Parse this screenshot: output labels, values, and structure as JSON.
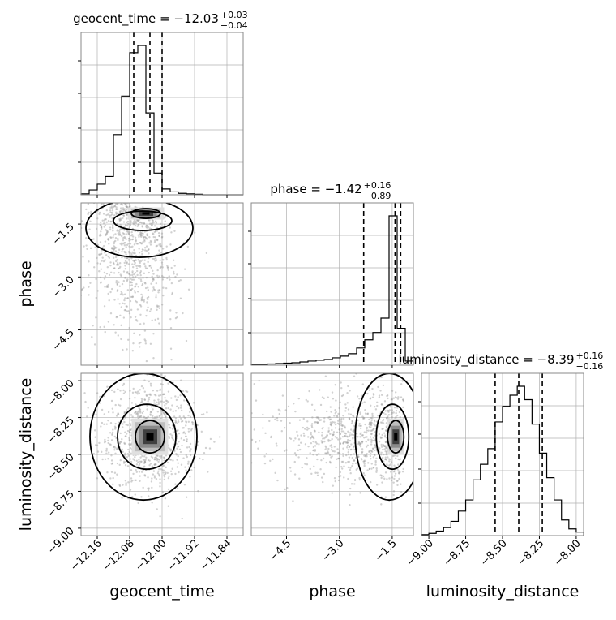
{
  "colors": {
    "hist": "#000000",
    "grid": "#b0b0b0",
    "scatter": "#9a9a9a",
    "contour": "#000000",
    "background": "#ffffff"
  },
  "chart_data": [
    {
      "type": "corner",
      "parameters": [
        "geocent_time",
        "phase",
        "luminosity_distance"
      ],
      "axis_labels": {
        "x": [
          "geocent_time",
          "phase",
          "luminosity_distance"
        ],
        "y": [
          "phase",
          "luminosity_distance"
        ]
      },
      "grid": true,
      "ticks": {
        "geocent_time": {
          "values": [
            -12.16,
            -12.08,
            -12.0,
            -11.92,
            -11.84
          ],
          "labels": [
            "−12.16",
            "−12.08",
            "−12.00",
            "−11.92",
            "−11.84"
          ],
          "range": [
            -12.2,
            -11.8
          ]
        },
        "phase": {
          "values": [
            -4.5,
            -3.0,
            -1.5
          ],
          "labels": [
            "−4.5",
            "−3.0",
            "−1.5"
          ],
          "range": [
            -5.5,
            -0.9
          ]
        },
        "luminosity_distance": {
          "values": [
            -9.0,
            -8.75,
            -8.5,
            -8.25,
            -8.0
          ],
          "labels": [
            "−9.00",
            "−8.75",
            "−8.50",
            "−8.25",
            "−8.00"
          ],
          "range": [
            -9.05,
            -7.95
          ]
        }
      }
    },
    {
      "type": "histogram",
      "parameter": "geocent_time",
      "title": {
        "prefix": "geocent_time = ",
        "value": "−12.03",
        "upper": "+0.03",
        "lower": "−0.04"
      },
      "quantiles": [
        -12.07,
        -12.03,
        -12.0
      ],
      "bins": [
        -12.2,
        -12.18,
        -12.16,
        -12.14,
        -12.12,
        -12.1,
        -12.08,
        -12.06,
        -12.04,
        -12.02,
        -12.0,
        -11.98,
        -11.96,
        -11.94,
        -11.92,
        -11.9,
        -11.88,
        -11.86,
        -11.84,
        -11.82,
        -11.8
      ],
      "counts": [
        2,
        10,
        22,
        38,
        125,
        205,
        295,
        310,
        170,
        45,
        12,
        6,
        3,
        2,
        1,
        0,
        0,
        0,
        0,
        0
      ]
    },
    {
      "type": "histogram",
      "parameter": "phase",
      "title": {
        "prefix": "phase = ",
        "value": "−1.42",
        "upper": "+0.16",
        "lower": "−0.89"
      },
      "quantiles": [
        -2.31,
        -1.42,
        -1.26
      ],
      "bins": [
        -5.5,
        -5.27,
        -5.04,
        -4.81,
        -4.58,
        -4.35,
        -4.12,
        -3.89,
        -3.66,
        -3.43,
        -3.2,
        -2.97,
        -2.74,
        -2.51,
        -2.28,
        -2.05,
        -1.82,
        -1.59,
        -1.36,
        -1.13,
        -0.9
      ],
      "counts": [
        1,
        2,
        3,
        4,
        5,
        6,
        8,
        10,
        12,
        14,
        18,
        22,
        28,
        42,
        62,
        80,
        115,
        365,
        90,
        10
      ]
    },
    {
      "type": "histogram",
      "parameter": "luminosity_distance",
      "title": {
        "prefix": "luminosity_distance = ",
        "value": "−8.39",
        "upper": "+0.16",
        "lower": "−0.16"
      },
      "quantiles": [
        -8.55,
        -8.39,
        -8.23
      ],
      "bins": [
        -9.05,
        -9.0,
        -8.95,
        -8.9,
        -8.85,
        -8.8,
        -8.75,
        -8.7,
        -8.65,
        -8.6,
        -8.55,
        -8.5,
        -8.45,
        -8.4,
        -8.35,
        -8.3,
        -8.25,
        -8.2,
        -8.15,
        -8.1,
        -8.05,
        -8.0,
        -7.95
      ],
      "counts": [
        2,
        5,
        10,
        18,
        32,
        55,
        80,
        125,
        160,
        195,
        255,
        290,
        315,
        335,
        305,
        250,
        185,
        130,
        80,
        35,
        15,
        8
      ]
    },
    {
      "type": "scatter",
      "x_parameter": "geocent_time",
      "y_parameter": "phase",
      "peak": [
        -12.04,
        -1.2
      ],
      "contour_levels": 3
    },
    {
      "type": "scatter",
      "x_parameter": "geocent_time",
      "y_parameter": "luminosity_distance",
      "peak": [
        -12.03,
        -8.38
      ],
      "contour_levels": 3
    },
    {
      "type": "scatter",
      "x_parameter": "phase",
      "y_parameter": "luminosity_distance",
      "peak": [
        -1.4,
        -8.38
      ],
      "contour_levels": 3
    }
  ]
}
